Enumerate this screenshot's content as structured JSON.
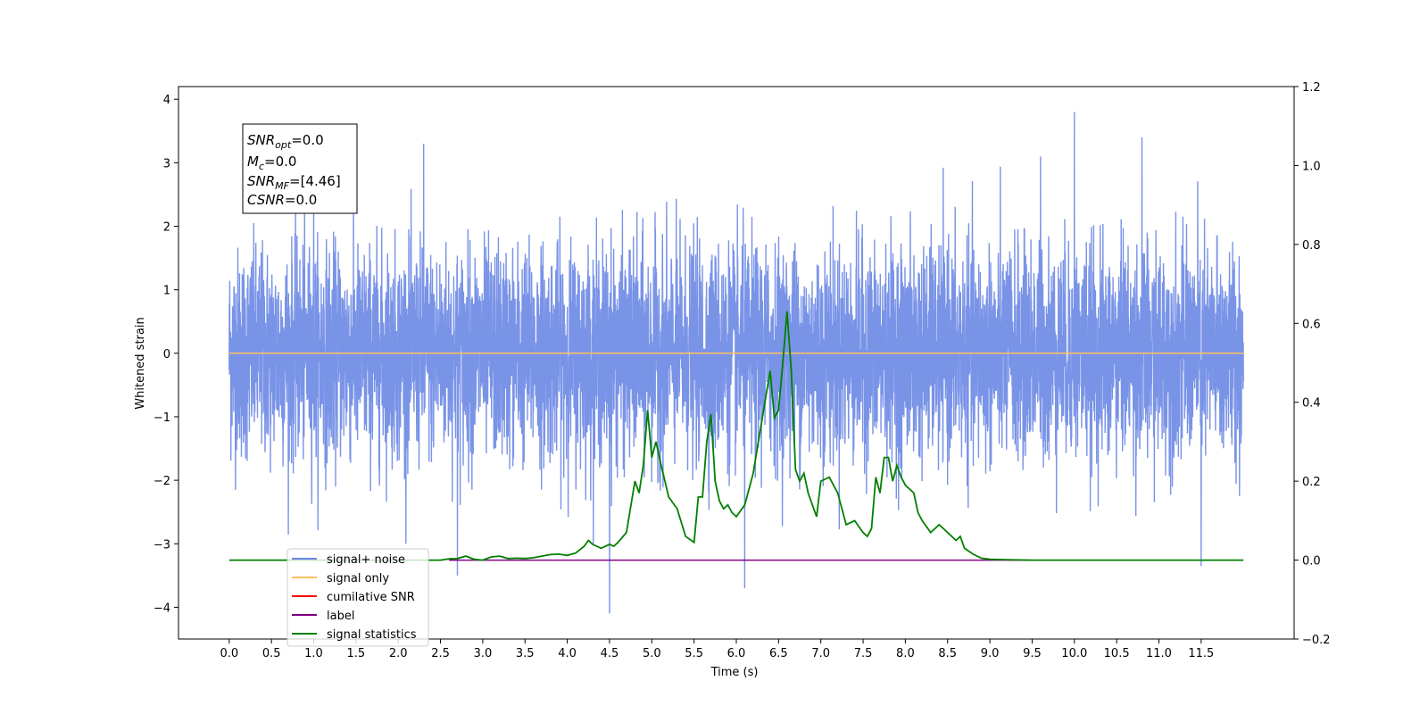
{
  "chart_data": {
    "type": "line",
    "xlabel": "Time (s)",
    "ylabel": "Whitened strain",
    "xlim": [
      -0.6,
      12.6
    ],
    "ylim": [
      -4.5,
      4.2
    ],
    "ylim_right": [
      -0.2,
      1.2
    ],
    "x_ticks": [
      0.0,
      0.5,
      1.0,
      1.5,
      2.0,
      2.5,
      3.0,
      3.5,
      4.0,
      4.5,
      5.0,
      5.5,
      6.0,
      6.5,
      7.0,
      7.5,
      8.0,
      8.5,
      9.0,
      9.5,
      10.0,
      10.5,
      11.0,
      11.5
    ],
    "x_tick_labels": [
      "0.0",
      "0.5",
      "1.0",
      "1.5",
      "2.0",
      "2.5",
      "3.0",
      "3.5",
      "4.0",
      "4.5",
      "5.0",
      "5.5",
      "6.0",
      "6.5",
      "7.0",
      "7.5",
      "8.0",
      "8.5",
      "9.0",
      "9.5",
      "10.0",
      "10.5",
      "11.0",
      "11.5"
    ],
    "y_ticks_left": [
      -4,
      -3,
      -2,
      -1,
      0,
      1,
      2,
      3,
      4
    ],
    "y_tick_labels_left": [
      "−4",
      "−3",
      "−2",
      "−1",
      "0",
      "1",
      "2",
      "3",
      "4"
    ],
    "y_ticks_right": [
      -0.2,
      0.0,
      0.2,
      0.4,
      0.6,
      0.8,
      1.0,
      1.2
    ],
    "y_tick_labels_right": [
      "−0.2",
      "0.0",
      "0.2",
      "0.4",
      "0.6",
      "0.8",
      "1.0",
      "1.2"
    ],
    "grid": false,
    "legend_position": "bottom-left",
    "legend": [
      {
        "label": "signal+ noise",
        "color": "#6a87e4"
      },
      {
        "label": "signal only",
        "color": "#ffc060"
      },
      {
        "label": "cumilative SNR",
        "color": "#ff0000"
      },
      {
        "label": "label",
        "color": "#800080"
      },
      {
        "label": "signal statistics",
        "color": "#008000"
      }
    ],
    "annotation": {
      "snr_opt": {
        "var": "SNR",
        "sub": "opt",
        "value": "=0.0"
      },
      "mc": {
        "var": "M",
        "sub": "c",
        "value": "=0.0"
      },
      "snr_mf": {
        "var": "SNR",
        "sub": "MF",
        "value": "=[4.46]"
      },
      "csnr": {
        "var": "CSNR",
        "sub": "",
        "value": "=0.0"
      }
    },
    "series": [
      {
        "name": "signal+ noise",
        "axis": "left",
        "color": "#6a87e4",
        "x_range": [
          0.0,
          12.0
        ],
        "noise_sigma": 1.0,
        "envelope_upper_typical": 2.0,
        "envelope_lower_typical": -1.9,
        "notable_peaks": [
          [
            1.0,
            2.6
          ],
          [
            2.3,
            3.3
          ],
          [
            2.7,
            -3.5
          ],
          [
            4.5,
            -4.1
          ],
          [
            6.1,
            -3.7
          ],
          [
            9.6,
            3.1
          ],
          [
            10.0,
            3.8
          ],
          [
            10.8,
            3.4
          ],
          [
            11.5,
            -3.35
          ]
        ]
      },
      {
        "name": "signal only",
        "axis": "left",
        "color": "#ffc060",
        "x": [
          0.0,
          12.0
        ],
        "values": [
          0.0,
          0.0
        ]
      },
      {
        "name": "label",
        "axis": "right",
        "color": "#800080",
        "x": [
          2.6,
          9.5
        ],
        "values": [
          0.0,
          0.0
        ]
      },
      {
        "name": "signal statistics",
        "axis": "right",
        "color": "#008000",
        "x": [
          0.0,
          2.5,
          2.6,
          2.7,
          2.8,
          2.9,
          3.0,
          3.1,
          3.2,
          3.3,
          3.4,
          3.5,
          3.6,
          3.7,
          3.8,
          3.9,
          4.0,
          4.1,
          4.2,
          4.25,
          4.3,
          4.4,
          4.5,
          4.55,
          4.6,
          4.7,
          4.8,
          4.85,
          4.9,
          4.95,
          5.0,
          5.05,
          5.1,
          5.2,
          5.3,
          5.4,
          5.5,
          5.55,
          5.6,
          5.65,
          5.7,
          5.75,
          5.8,
          5.85,
          5.9,
          5.95,
          6.0,
          6.1,
          6.2,
          6.3,
          6.4,
          6.45,
          6.5,
          6.55,
          6.6,
          6.65,
          6.7,
          6.75,
          6.8,
          6.85,
          6.9,
          6.95,
          7.0,
          7.1,
          7.2,
          7.3,
          7.4,
          7.5,
          7.55,
          7.6,
          7.65,
          7.7,
          7.75,
          7.8,
          7.85,
          7.9,
          7.95,
          8.0,
          8.1,
          8.15,
          8.2,
          8.3,
          8.4,
          8.5,
          8.6,
          8.65,
          8.7,
          8.8,
          8.9,
          9.0,
          9.2,
          9.5,
          12.0
        ],
        "values": [
          0.0,
          0.0,
          0.003,
          0.004,
          0.01,
          0.002,
          0.0,
          0.008,
          0.01,
          0.004,
          0.005,
          0.004,
          0.006,
          0.01,
          0.014,
          0.015,
          0.012,
          0.018,
          0.035,
          0.05,
          0.04,
          0.03,
          0.04,
          0.035,
          0.045,
          0.07,
          0.2,
          0.17,
          0.24,
          0.38,
          0.26,
          0.3,
          0.25,
          0.16,
          0.13,
          0.06,
          0.045,
          0.16,
          0.16,
          0.3,
          0.37,
          0.2,
          0.15,
          0.13,
          0.14,
          0.12,
          0.11,
          0.14,
          0.22,
          0.35,
          0.48,
          0.36,
          0.38,
          0.5,
          0.63,
          0.48,
          0.23,
          0.2,
          0.22,
          0.17,
          0.14,
          0.11,
          0.2,
          0.21,
          0.17,
          0.09,
          0.1,
          0.07,
          0.06,
          0.08,
          0.21,
          0.17,
          0.26,
          0.26,
          0.2,
          0.24,
          0.21,
          0.19,
          0.17,
          0.12,
          0.1,
          0.07,
          0.09,
          0.07,
          0.05,
          0.06,
          0.03,
          0.015,
          0.005,
          0.002,
          0.001,
          0.0,
          0.0
        ]
      }
    ]
  }
}
